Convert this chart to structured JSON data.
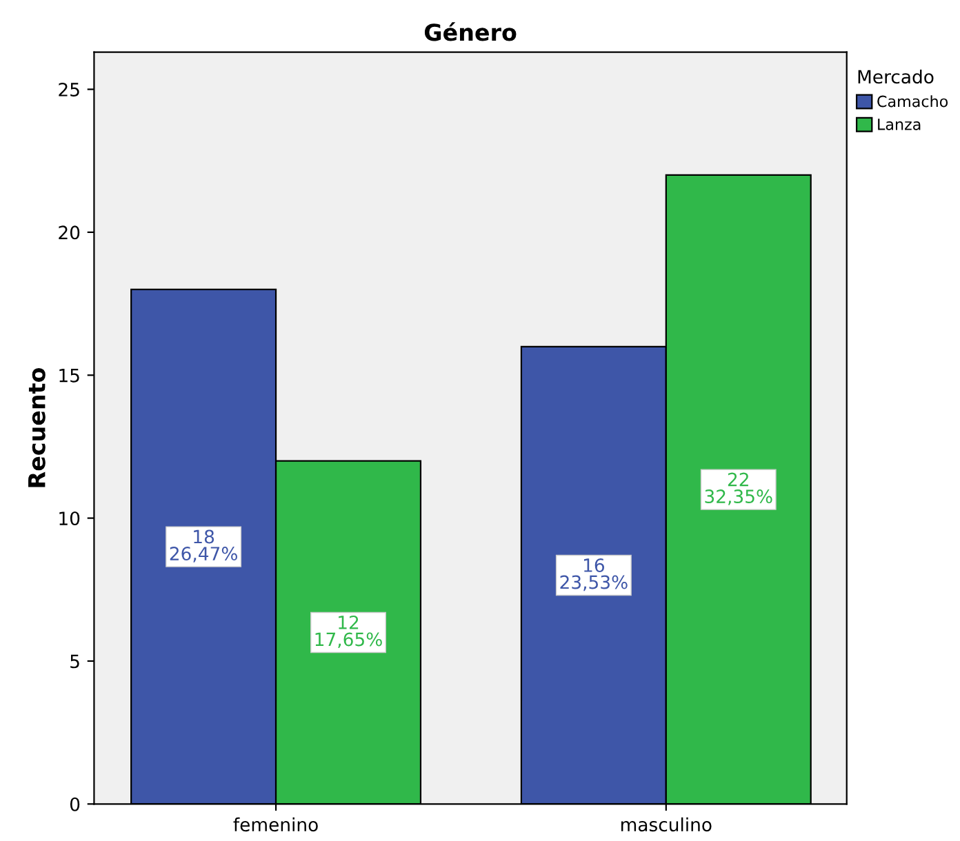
{
  "chart_data": {
    "type": "bar",
    "title": "Género",
    "ylabel": "Recuento",
    "legend_title": "Mercado",
    "legend": "right",
    "categories": [
      "femenino",
      "masculino"
    ],
    "series": [
      {
        "name": "Camacho",
        "color": "#3e56a8",
        "values": [
          18,
          16
        ],
        "value_labels": [
          "18\n26,47%",
          "16\n23,53%"
        ]
      },
      {
        "name": "Lanza",
        "color": "#30b84a",
        "values": [
          12,
          22
        ],
        "value_labels": [
          "12\n17,65%",
          "22\n32,35%"
        ]
      }
    ],
    "ylim": [
      0,
      26.3
    ],
    "yticks": [
      0,
      5,
      10,
      15,
      20,
      25
    ],
    "grid": false
  }
}
